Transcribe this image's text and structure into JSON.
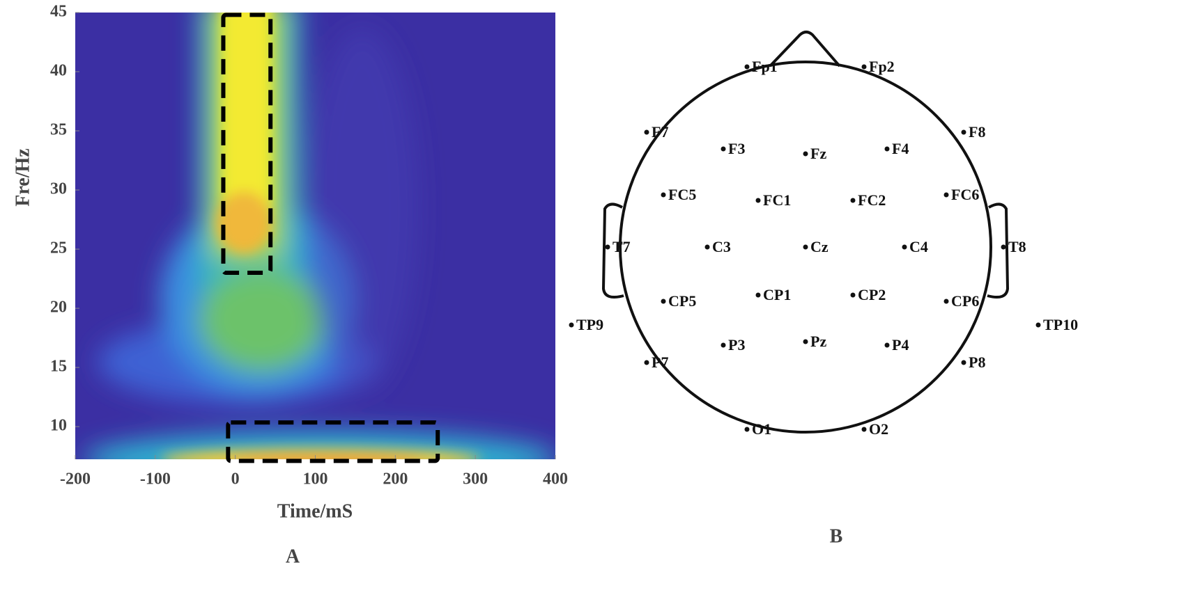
{
  "chart_data": {
    "type": "heatmap",
    "panel_label": "A",
    "xlabel": "Time/mS",
    "ylabel": "Fre/Hz",
    "xlim": [
      -200,
      400
    ],
    "ylim": [
      7.24,
      45
    ],
    "xticks": [
      -200,
      -100,
      0,
      100,
      200,
      300,
      400
    ],
    "yticks": [
      10,
      15,
      20,
      25,
      30,
      35,
      40,
      45
    ],
    "boxes": [
      {
        "x": [
          -15,
          44
        ],
        "y": [
          23,
          44.8
        ]
      },
      {
        "x": [
          -9,
          253
        ],
        "y": [
          7.1,
          10.35
        ]
      }
    ]
  },
  "montage": {
    "panel_label": "B",
    "electrodes": [
      "Fp1",
      "Fp2",
      "F7",
      "F3",
      "Fz",
      "F4",
      "F8",
      "FC5",
      "FC1",
      "FC2",
      "FC6",
      "T7",
      "C3",
      "Cz",
      "C4",
      "T8",
      "TP9",
      "CP5",
      "CP1",
      "CP2",
      "CP6",
      "TP10",
      "P7",
      "P3",
      "Pz",
      "P4",
      "P8",
      "O1",
      "O2"
    ]
  }
}
